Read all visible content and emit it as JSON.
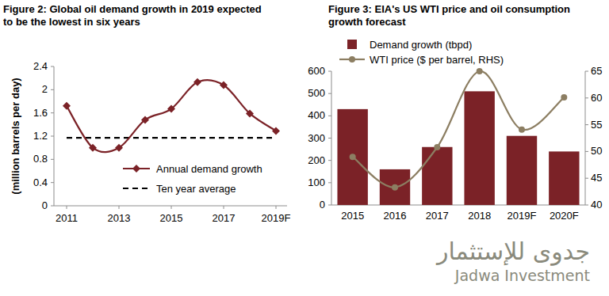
{
  "chart_data": [
    {
      "type": "line",
      "title": "Figure 2: Global oil demand growth in 2019 expected to be the lowest in six years",
      "y_label": "(million barrels per day)",
      "categories": [
        "2011",
        null,
        "2013",
        null,
        "2015",
        null,
        "2017",
        null,
        "2019F"
      ],
      "series": [
        {
          "name": "Annual demand growth",
          "color": "#7b2227",
          "marker": "diamond",
          "line_style": "smooth",
          "values": [
            1.72,
            1.0,
            1.0,
            1.48,
            1.67,
            2.13,
            2.08,
            1.59,
            1.29
          ]
        },
        {
          "name": "Ten year average",
          "color": "#000000",
          "line_style": "dashed",
          "values": [
            1.17,
            1.17,
            1.17,
            1.17,
            1.17,
            1.17,
            1.17,
            1.17,
            1.17
          ]
        }
      ],
      "ylim": [
        0,
        2.4
      ],
      "yticks": [
        0,
        0.4,
        0.8,
        1.2,
        1.6,
        2,
        2.4
      ],
      "grid": false,
      "legend": "bottom"
    },
    {
      "type": "bar",
      "title": "Figure 3: EIA's US WTI price and oil consumption growth forecast",
      "categories": [
        "2015",
        "2016",
        "2017",
        "2018",
        "2019F",
        "2020F"
      ],
      "series": [
        {
          "name": "Demand growth (tbpd)",
          "type": "bar",
          "color": "#7b2227",
          "values": [
            430,
            160,
            260,
            510,
            310,
            240
          ]
        },
        {
          "name": "WTI price ($ per barrel, RHS)",
          "type": "line",
          "color": "#8c7e62",
          "marker": "circle",
          "line_style": "smooth",
          "axis": "y2",
          "values": [
            49,
            43.3,
            50.8,
            65,
            54.1,
            60.1
          ]
        }
      ],
      "ylim": [
        0,
        600
      ],
      "yticks": [
        0,
        100,
        200,
        300,
        400,
        500,
        600
      ],
      "y2lim": [
        40,
        65
      ],
      "y2ticks": [
        40,
        45,
        50,
        55,
        60,
        65
      ],
      "grid": false,
      "legend": "top-left"
    }
  ],
  "logo": {
    "arabic": "جدوى للإستثمار",
    "english": "Jadwa Investment"
  }
}
